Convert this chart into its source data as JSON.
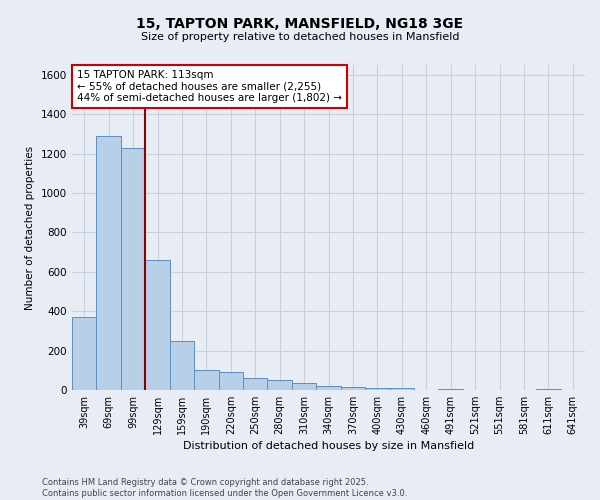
{
  "title": "15, TAPTON PARK, MANSFIELD, NG18 3GE",
  "subtitle": "Size of property relative to detached houses in Mansfield",
  "xlabel": "Distribution of detached houses by size in Mansfield",
  "ylabel": "Number of detached properties",
  "categories": [
    "39sqm",
    "69sqm",
    "99sqm",
    "129sqm",
    "159sqm",
    "190sqm",
    "220sqm",
    "250sqm",
    "280sqm",
    "310sqm",
    "340sqm",
    "370sqm",
    "400sqm",
    "430sqm",
    "460sqm",
    "491sqm",
    "521sqm",
    "551sqm",
    "581sqm",
    "611sqm",
    "641sqm"
  ],
  "values": [
    370,
    1290,
    1230,
    660,
    250,
    100,
    90,
    60,
    50,
    35,
    20,
    15,
    10,
    8,
    0,
    5,
    0,
    0,
    0,
    3,
    0
  ],
  "bar_color": "#b8cfe8",
  "bar_edge_color": "#5b8ec4",
  "grid_color": "#c8d0de",
  "background_color": "#e8ecf4",
  "vline_color": "#8b0000",
  "annotation_text": "15 TAPTON PARK: 113sqm\n← 55% of detached houses are smaller (2,255)\n44% of semi-detached houses are larger (1,802) →",
  "annotation_box_color": "#ffffff",
  "annotation_box_edge": "#cc0000",
  "ylim": [
    0,
    1650
  ],
  "yticks": [
    0,
    200,
    400,
    600,
    800,
    1000,
    1200,
    1400,
    1600
  ],
  "footer_line1": "Contains HM Land Registry data © Crown copyright and database right 2025.",
  "footer_line2": "Contains public sector information licensed under the Open Government Licence v3.0."
}
